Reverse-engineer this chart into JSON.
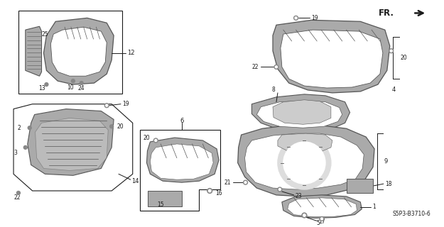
{
  "bg_color": "#ffffff",
  "line_color": "#1a1a1a",
  "dgray": "#555555",
  "lgray": "#aaaaaa",
  "mgray": "#888888",
  "diagram_code": "S5P3-B3710",
  "diagram_suffix": "6",
  "fr_label": "FR.",
  "fig_width": 6.25,
  "fig_height": 3.2,
  "dpi": 100
}
